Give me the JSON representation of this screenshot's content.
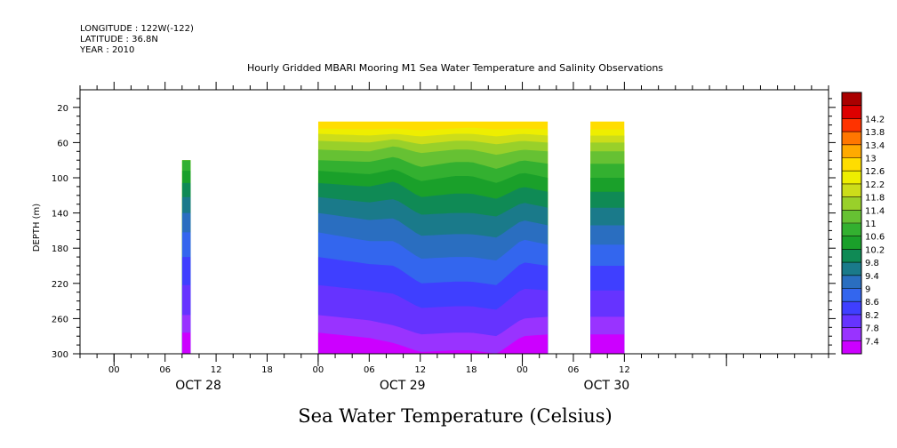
{
  "header": {
    "longitude": "LONGITUDE : 122W(-122)",
    "latitude": "LATITUDE : 36.8N",
    "year": "YEAR : 2010"
  },
  "chart_data": {
    "type": "heatmap",
    "title": "Hourly Gridded MBARI Mooring M1 Sea Water Temperature and Salinity Observations",
    "variable_title": "Sea Water Temperature (Celsius)",
    "ylabel": "DEPTH (m)",
    "y_inverted": true,
    "ylim": [
      0,
      300
    ],
    "y_ticks": [
      20,
      60,
      100,
      140,
      180,
      220,
      260,
      300
    ],
    "x_unit": "hours",
    "xlim_hours": [
      -4,
      84
    ],
    "x_ticks": [
      {
        "hour": 0,
        "label": "00"
      },
      {
        "hour": 6,
        "label": "06"
      },
      {
        "hour": 12,
        "label": "12"
      },
      {
        "hour": 18,
        "label": "18"
      },
      {
        "hour": 24,
        "label": "00"
      },
      {
        "hour": 30,
        "label": "06"
      },
      {
        "hour": 36,
        "label": "12"
      },
      {
        "hour": 42,
        "label": "18"
      },
      {
        "hour": 48,
        "label": "00"
      },
      {
        "hour": 54,
        "label": "06"
      },
      {
        "hour": 60,
        "label": "12"
      }
    ],
    "day_labels": [
      {
        "hour": 12,
        "label": "OCT 28"
      },
      {
        "hour": 36,
        "label": "OCT 29"
      },
      {
        "hour": 60,
        "label": "OCT 30"
      }
    ],
    "colorbar_levels": [
      "7.4",
      "7.8",
      "8.2",
      "8.6",
      "9",
      "9.4",
      "9.8",
      "10.2",
      "10.6",
      "11",
      "11.4",
      "11.8",
      "12.2",
      "12.6",
      "13",
      "13.4",
      "13.8",
      "14.2"
    ],
    "colorbar_colors": [
      "#cc00ff",
      "#9933ff",
      "#6633ff",
      "#3f3fff",
      "#3366ee",
      "#2a6ec0",
      "#1a7a8a",
      "#0f8a55",
      "#1aa02a",
      "#33b030",
      "#66c133",
      "#99d02a",
      "#ccdd1a",
      "#eeee00",
      "#ffdd00",
      "#ffaa00",
      "#ff7700",
      "#ff3300",
      "#dd0000",
      "#aa0000"
    ],
    "data_segments": [
      {
        "x_start": 8,
        "x_end": 9,
        "depth_top": 80,
        "depth_bottom": 300
      },
      {
        "x_start": 24,
        "x_end": 51,
        "depth_top": 36,
        "depth_bottom": 300
      },
      {
        "x_start": 56,
        "x_end": 60,
        "depth_top": 36,
        "depth_bottom": 300
      }
    ],
    "isotherm_depths": [
      {
        "temp": 12.6,
        "profile": [
          [
            24,
            44
          ],
          [
            30,
            45
          ],
          [
            33,
            44
          ],
          [
            36,
            46
          ],
          [
            40,
            44
          ],
          [
            42,
            43
          ],
          [
            45,
            45
          ],
          [
            48,
            44
          ],
          [
            51,
            45
          ]
        ]
      },
      {
        "temp": 12.2,
        "profile": [
          [
            24,
            50
          ],
          [
            30,
            52
          ],
          [
            33,
            50
          ],
          [
            36,
            53
          ],
          [
            40,
            50
          ],
          [
            42,
            50
          ],
          [
            45,
            53
          ],
          [
            48,
            50
          ],
          [
            51,
            52
          ]
        ]
      },
      {
        "temp": 11.8,
        "profile": [
          [
            24,
            58
          ],
          [
            30,
            60
          ],
          [
            33,
            56
          ],
          [
            36,
            62
          ],
          [
            40,
            58
          ],
          [
            42,
            58
          ],
          [
            45,
            62
          ],
          [
            48,
            58
          ],
          [
            51,
            60
          ]
        ]
      },
      {
        "temp": 11.4,
        "profile": [
          [
            24,
            68
          ],
          [
            30,
            70
          ],
          [
            33,
            64
          ],
          [
            36,
            72
          ],
          [
            40,
            68
          ],
          [
            42,
            68
          ],
          [
            45,
            74
          ],
          [
            48,
            68
          ],
          [
            51,
            70
          ]
        ]
      },
      {
        "temp": 11.0,
        "profile": [
          [
            24,
            80
          ],
          [
            30,
            82
          ],
          [
            33,
            76
          ],
          [
            36,
            88
          ],
          [
            40,
            82
          ],
          [
            42,
            82
          ],
          [
            45,
            90
          ],
          [
            48,
            80
          ],
          [
            51,
            84
          ]
        ]
      },
      {
        "temp": 10.6,
        "profile": [
          [
            24,
            92
          ],
          [
            30,
            96
          ],
          [
            33,
            90
          ],
          [
            36,
            104
          ],
          [
            40,
            98
          ],
          [
            42,
            98
          ],
          [
            45,
            106
          ],
          [
            48,
            94
          ],
          [
            51,
            100
          ]
        ]
      },
      {
        "temp": 10.2,
        "profile": [
          [
            24,
            106
          ],
          [
            30,
            110
          ],
          [
            33,
            104
          ],
          [
            36,
            122
          ],
          [
            40,
            118
          ],
          [
            42,
            118
          ],
          [
            45,
            124
          ],
          [
            48,
            110
          ],
          [
            51,
            116
          ]
        ]
      },
      {
        "temp": 9.8,
        "profile": [
          [
            24,
            122
          ],
          [
            30,
            128
          ],
          [
            33,
            124
          ],
          [
            36,
            142
          ],
          [
            40,
            140
          ],
          [
            42,
            140
          ],
          [
            45,
            144
          ],
          [
            48,
            128
          ],
          [
            51,
            134
          ]
        ]
      },
      {
        "temp": 9.4,
        "profile": [
          [
            24,
            140
          ],
          [
            30,
            148
          ],
          [
            33,
            146
          ],
          [
            36,
            166
          ],
          [
            40,
            164
          ],
          [
            42,
            164
          ],
          [
            45,
            168
          ],
          [
            48,
            148
          ],
          [
            51,
            154
          ]
        ]
      },
      {
        "temp": 9.0,
        "profile": [
          [
            24,
            162
          ],
          [
            30,
            172
          ],
          [
            33,
            172
          ],
          [
            36,
            192
          ],
          [
            40,
            190
          ],
          [
            42,
            190
          ],
          [
            45,
            194
          ],
          [
            48,
            170
          ],
          [
            51,
            176
          ]
        ]
      },
      {
        "temp": 8.6,
        "profile": [
          [
            24,
            190
          ],
          [
            30,
            198
          ],
          [
            33,
            200
          ],
          [
            36,
            220
          ],
          [
            40,
            218
          ],
          [
            42,
            218
          ],
          [
            45,
            222
          ],
          [
            48,
            196
          ],
          [
            51,
            200
          ]
        ]
      },
      {
        "temp": 8.2,
        "profile": [
          [
            24,
            222
          ],
          [
            30,
            228
          ],
          [
            33,
            232
          ],
          [
            36,
            248
          ],
          [
            40,
            246
          ],
          [
            42,
            246
          ],
          [
            45,
            250
          ],
          [
            48,
            226
          ],
          [
            51,
            228
          ]
        ]
      },
      {
        "temp": 7.8,
        "profile": [
          [
            24,
            256
          ],
          [
            30,
            262
          ],
          [
            33,
            268
          ],
          [
            36,
            278
          ],
          [
            40,
            276
          ],
          [
            42,
            276
          ],
          [
            45,
            280
          ],
          [
            48,
            260
          ],
          [
            51,
            258
          ]
        ]
      }
    ]
  }
}
